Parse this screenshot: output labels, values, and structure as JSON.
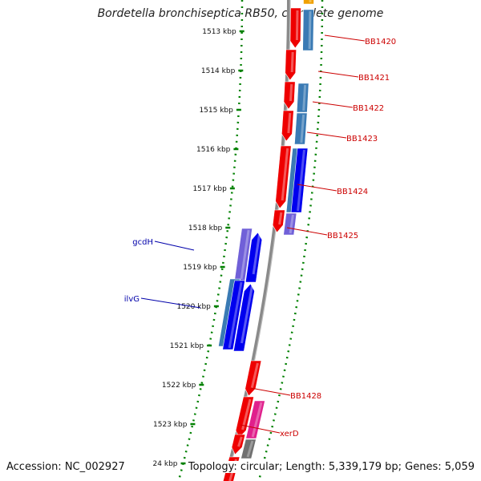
{
  "title": "Bordetella bronchiseptica RB50, complete genome",
  "footer": {
    "accession": "Accession: NC_002927",
    "topology": "Topology: circular; Length: 5,339,179 bp; Genes: 5,059"
  },
  "ruler_ticks": [
    "1513 kbp",
    "1514 kbp",
    "1515 kbp",
    "1516 kbp",
    "1517 kbp",
    "1518 kbp",
    "1519 kbp",
    "1520 kbp",
    "1521 kbp",
    "1522 kbp",
    "1523 kbp",
    "24 kbp"
  ],
  "gene_labels": [
    {
      "text": "BB1420",
      "color": "#cc0000"
    },
    {
      "text": "BB1421",
      "color": "#cc0000"
    },
    {
      "text": "BB1422",
      "color": "#cc0000"
    },
    {
      "text": "BB1423",
      "color": "#cc0000"
    },
    {
      "text": "BB1424",
      "color": "#cc0000"
    },
    {
      "text": "BB1425",
      "color": "#cc0000"
    },
    {
      "text": "gcdH",
      "color": "#0000aa"
    },
    {
      "text": "ilvG",
      "color": "#0000aa"
    },
    {
      "text": "BB1428",
      "color": "#cc0000"
    },
    {
      "text": "xerD",
      "color": "#cc0000"
    }
  ],
  "colors": {
    "backbone": "#8a8a8a",
    "ruler_dots": "#008000",
    "feature_red": "#ee0000",
    "feature_blue": "#0000ee",
    "feature_steelblue": "#3a7ab4",
    "feature_violet": "#7060d8",
    "feature_magenta": "#e0208c",
    "feature_gray": "#707070",
    "feature_orange": "#f0a000"
  }
}
